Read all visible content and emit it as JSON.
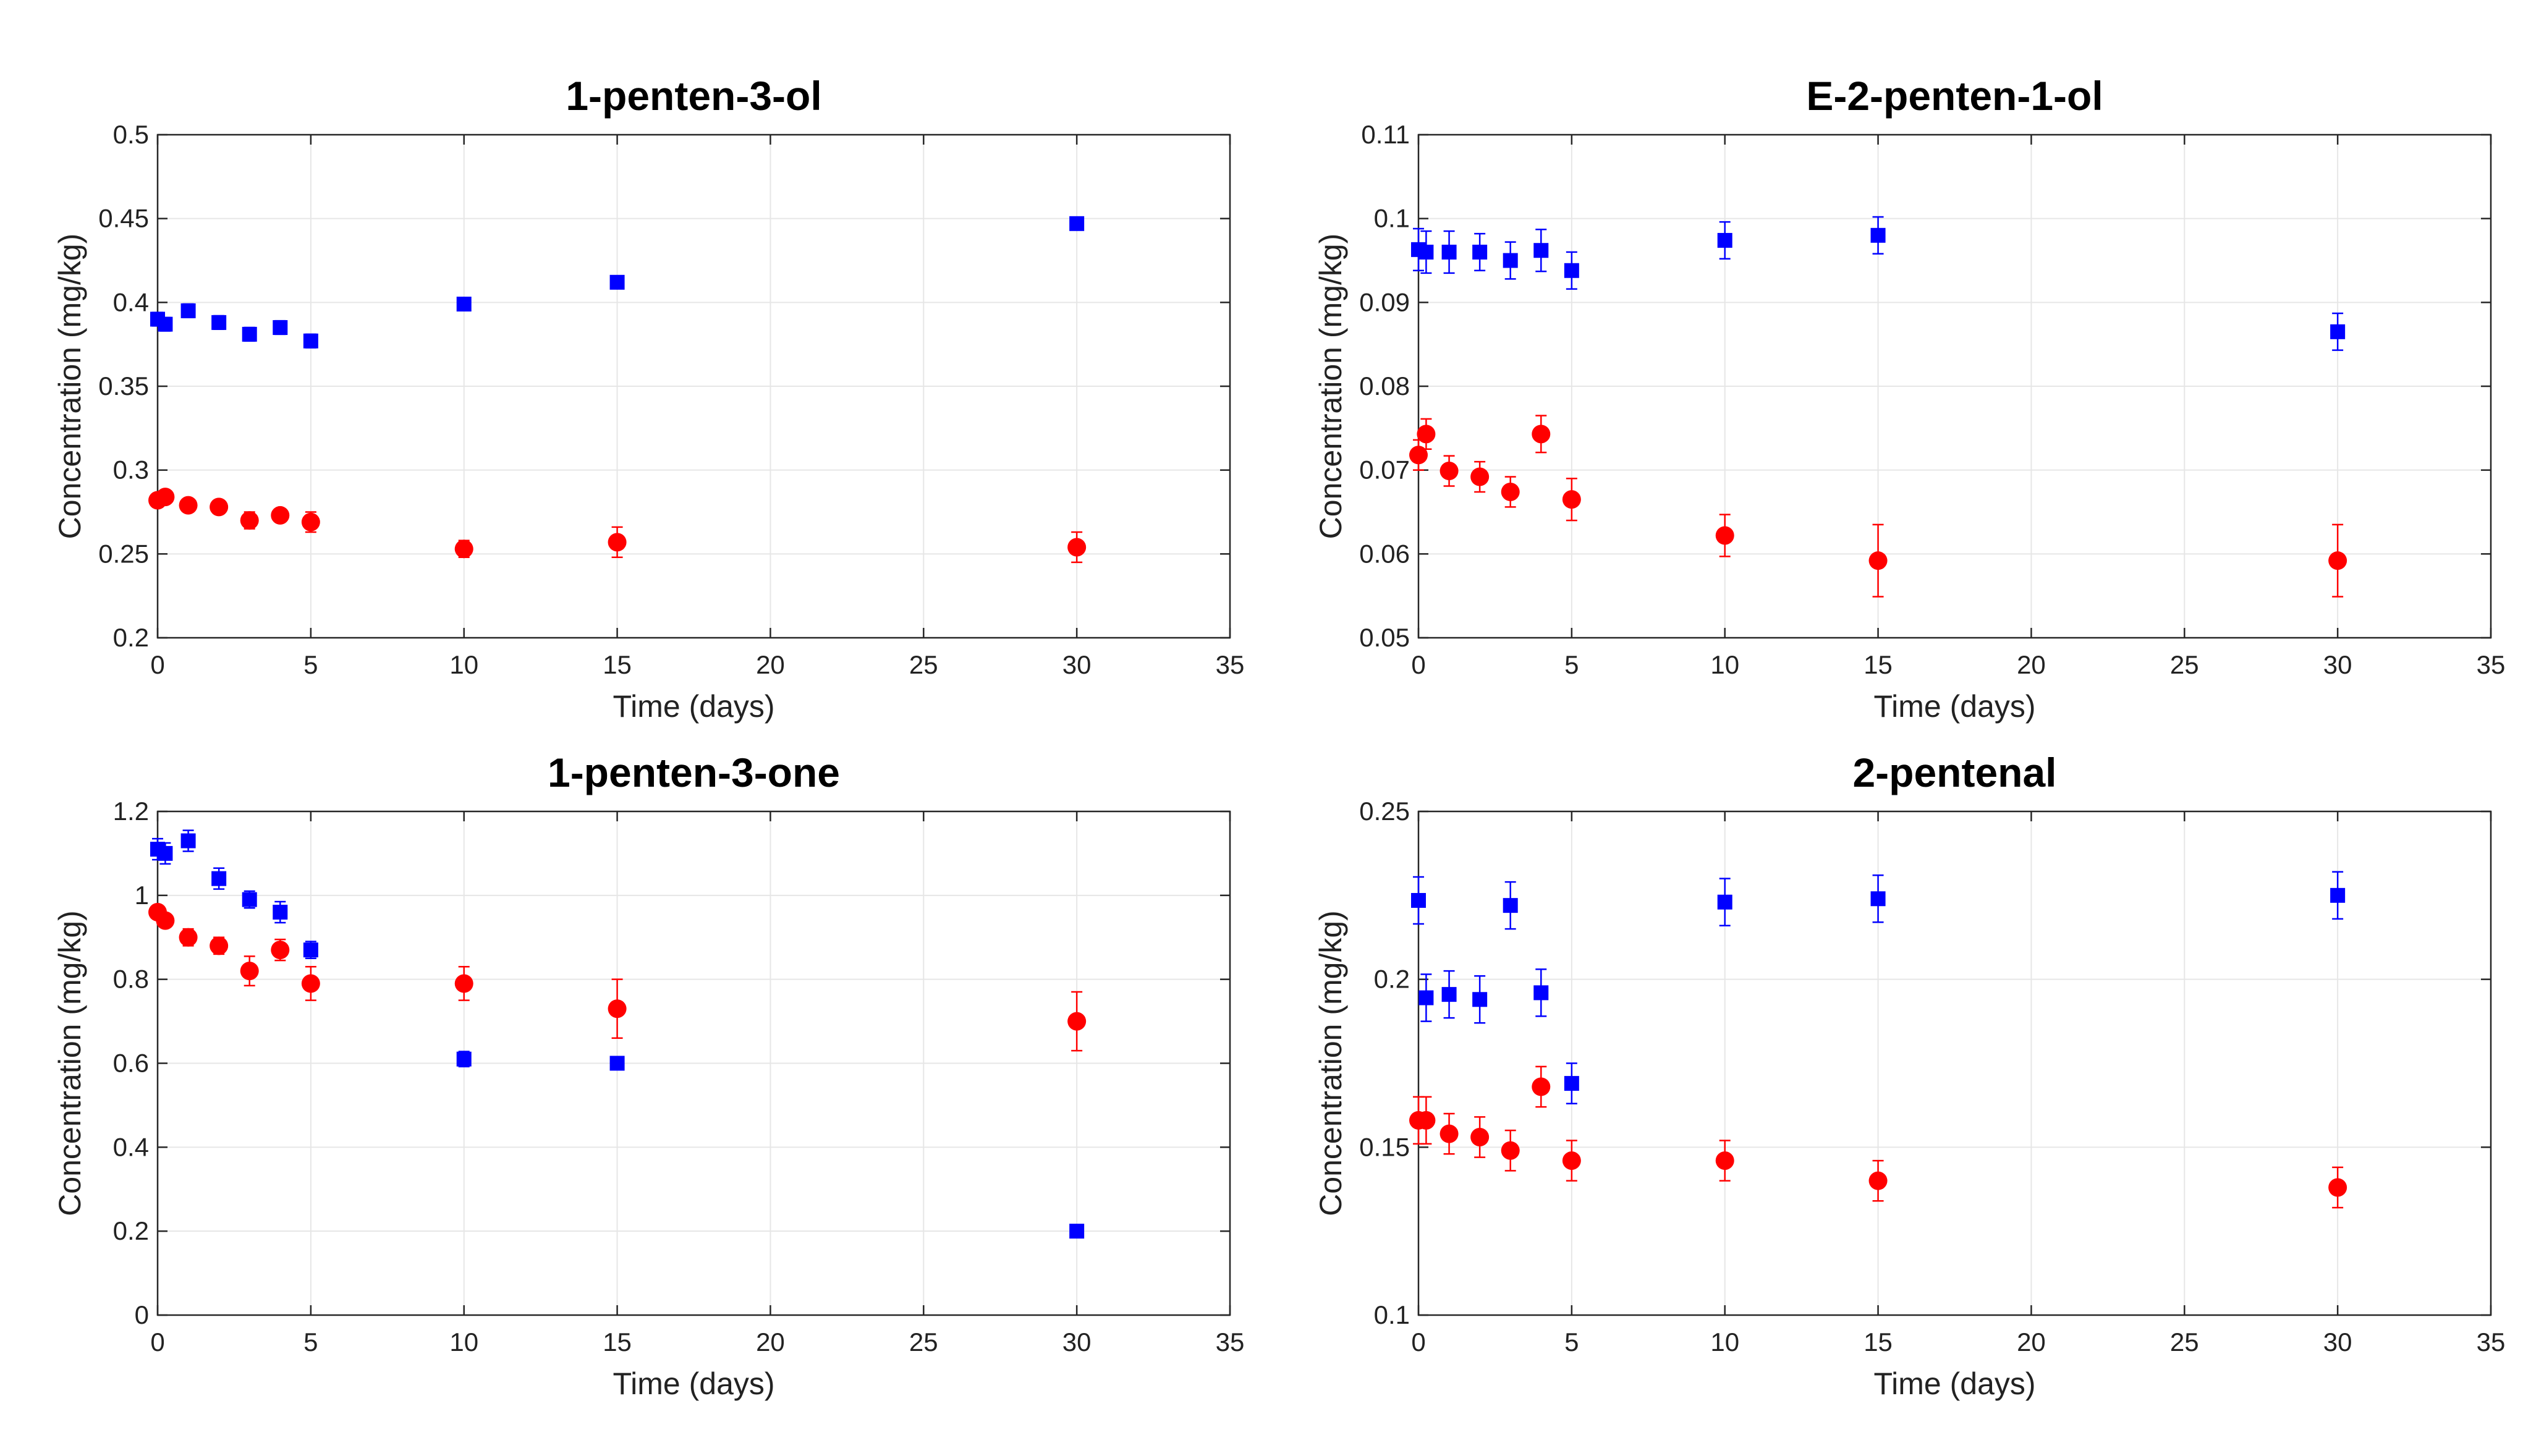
{
  "chart_data": [
    {
      "type": "scatter",
      "title": "1-penten-3-ol",
      "xlabel": "Time (days)",
      "ylabel": "Concentration (mg/kg)",
      "xlim": [
        0,
        35
      ],
      "ylim": [
        0.2,
        0.5
      ],
      "xticks": [
        0,
        5,
        10,
        15,
        20,
        25,
        30,
        35
      ],
      "yticks": [
        0.2,
        0.25,
        0.3,
        0.35,
        0.4,
        0.45,
        0.5
      ],
      "xtick_labels": [
        "0",
        "5",
        "10",
        "15",
        "20",
        "25",
        "30",
        "35"
      ],
      "ytick_labels": [
        "0.2",
        "0.25",
        "0.3",
        "0.35",
        "0.4",
        "0.45",
        "0.5"
      ],
      "series": [
        {
          "name": "blue squares",
          "color": "#0000ff",
          "marker": "square",
          "x": [
            0,
            0.25,
            1,
            2,
            3,
            4,
            5,
            10,
            15,
            30
          ],
          "y": [
            0.39,
            0.387,
            0.395,
            0.388,
            0.381,
            0.385,
            0.377,
            0.399,
            0.412,
            0.447
          ],
          "err": [
            0.004,
            0.004,
            0.004,
            0.004,
            0.004,
            0.004,
            0.004,
            0.003,
            0.003,
            0.003
          ]
        },
        {
          "name": "red circles",
          "color": "#ff0000",
          "marker": "circle",
          "x": [
            0,
            0.25,
            1,
            2,
            3,
            4,
            5,
            10,
            15,
            30
          ],
          "y": [
            0.282,
            0.284,
            0.279,
            0.278,
            0.27,
            0.273,
            0.269,
            0.253,
            0.257,
            0.254
          ],
          "err": [
            0.004,
            0.003,
            0.003,
            0.003,
            0.005,
            0.003,
            0.006,
            0.005,
            0.009,
            0.009
          ]
        }
      ]
    },
    {
      "type": "scatter",
      "title": "E-2-penten-1-ol",
      "xlabel": "Time (days)",
      "ylabel": "Concentration (mg/kg)",
      "xlim": [
        0,
        35
      ],
      "ylim": [
        0.05,
        0.11
      ],
      "xticks": [
        0,
        5,
        10,
        15,
        20,
        25,
        30,
        35
      ],
      "yticks": [
        0.05,
        0.06,
        0.07,
        0.08,
        0.09,
        0.1,
        0.11
      ],
      "xtick_labels": [
        "0",
        "5",
        "10",
        "15",
        "20",
        "25",
        "30",
        "35"
      ],
      "ytick_labels": [
        "0.05",
        "0.06",
        "0.07",
        "0.08",
        "0.09",
        "0.1",
        "0.11"
      ],
      "series": [
        {
          "name": "blue squares",
          "color": "#0000ff",
          "marker": "square",
          "x": [
            0,
            0.25,
            1,
            2,
            3,
            4,
            5,
            10,
            15,
            30
          ],
          "y": [
            0.0963,
            0.096,
            0.096,
            0.096,
            0.095,
            0.0962,
            0.0938,
            0.0974,
            0.098,
            0.0865
          ],
          "err": [
            0.0025,
            0.0025,
            0.0025,
            0.0022,
            0.0022,
            0.0025,
            0.0022,
            0.0022,
            0.0022,
            0.0022
          ]
        },
        {
          "name": "red circles",
          "color": "#ff0000",
          "marker": "circle",
          "x": [
            0,
            0.25,
            1,
            2,
            3,
            4,
            5,
            10,
            15,
            30
          ],
          "y": [
            0.0718,
            0.0743,
            0.0699,
            0.0692,
            0.0674,
            0.0743,
            0.0665,
            0.0622,
            0.0592,
            0.0592
          ],
          "err": [
            0.0018,
            0.0018,
            0.0018,
            0.0018,
            0.0018,
            0.0022,
            0.0025,
            0.0025,
            0.0043,
            0.0043
          ]
        }
      ]
    },
    {
      "type": "scatter",
      "title": "1-penten-3-one",
      "xlabel": "Time (days)",
      "ylabel": "Concentration (mg/kg)",
      "xlim": [
        0,
        35
      ],
      "ylim": [
        0,
        1.2
      ],
      "xticks": [
        0,
        5,
        10,
        15,
        20,
        25,
        30,
        35
      ],
      "yticks": [
        0,
        0.2,
        0.4,
        0.6,
        0.8,
        1,
        1.2
      ],
      "xtick_labels": [
        "0",
        "5",
        "10",
        "15",
        "20",
        "25",
        "30",
        "35"
      ],
      "ytick_labels": [
        "0",
        "0.2",
        "0.4",
        "0.6",
        "0.8",
        "1",
        "1.2"
      ],
      "series": [
        {
          "name": "blue squares",
          "color": "#0000ff",
          "marker": "square",
          "x": [
            0,
            0.25,
            1,
            2,
            3,
            4,
            5,
            10,
            15,
            30
          ],
          "y": [
            1.11,
            1.1,
            1.13,
            1.04,
            0.99,
            0.96,
            0.87,
            0.61,
            0.6,
            0.2
          ],
          "err": [
            0.025,
            0.025,
            0.025,
            0.025,
            0.02,
            0.025,
            0.02,
            0.018,
            0.015,
            0.015
          ]
        },
        {
          "name": "red circles",
          "color": "#ff0000",
          "marker": "circle",
          "x": [
            0,
            0.25,
            1,
            2,
            3,
            4,
            5,
            10,
            15,
            30
          ],
          "y": [
            0.96,
            0.94,
            0.9,
            0.88,
            0.82,
            0.87,
            0.79,
            0.79,
            0.73,
            0.7
          ],
          "err": [
            0.015,
            0.015,
            0.02,
            0.02,
            0.035,
            0.025,
            0.04,
            0.04,
            0.07,
            0.07
          ]
        }
      ]
    },
    {
      "type": "scatter",
      "title": "2-pentenal",
      "xlabel": "Time (days)",
      "ylabel": "Concentration (mg/kg)",
      "xlim": [
        0,
        35
      ],
      "ylim": [
        0.1,
        0.25
      ],
      "xticks": [
        0,
        5,
        10,
        15,
        20,
        25,
        30,
        35
      ],
      "yticks": [
        0.1,
        0.15,
        0.2,
        0.25
      ],
      "xtick_labels": [
        "0",
        "5",
        "10",
        "15",
        "20",
        "25",
        "30",
        "35"
      ],
      "ytick_labels": [
        "0.1",
        "0.15",
        "0.2",
        "0.25"
      ],
      "series": [
        {
          "name": "blue squares",
          "color": "#0000ff",
          "marker": "square",
          "x": [
            0,
            0.25,
            1,
            2,
            3,
            4,
            5,
            10,
            15,
            30
          ],
          "y": [
            0.2235,
            0.1945,
            0.1955,
            0.194,
            0.222,
            0.196,
            0.169,
            0.223,
            0.224,
            0.225
          ],
          "err": [
            0.007,
            0.007,
            0.007,
            0.007,
            0.007,
            0.007,
            0.006,
            0.007,
            0.007,
            0.007
          ]
        },
        {
          "name": "red circles",
          "color": "#ff0000",
          "marker": "circle",
          "x": [
            0,
            0.25,
            1,
            2,
            3,
            4,
            5,
            10,
            15,
            30
          ],
          "y": [
            0.158,
            0.158,
            0.154,
            0.153,
            0.149,
            0.168,
            0.146,
            0.146,
            0.14,
            0.138
          ],
          "err": [
            0.007,
            0.007,
            0.006,
            0.006,
            0.006,
            0.006,
            0.006,
            0.006,
            0.006,
            0.006
          ]
        }
      ]
    }
  ]
}
